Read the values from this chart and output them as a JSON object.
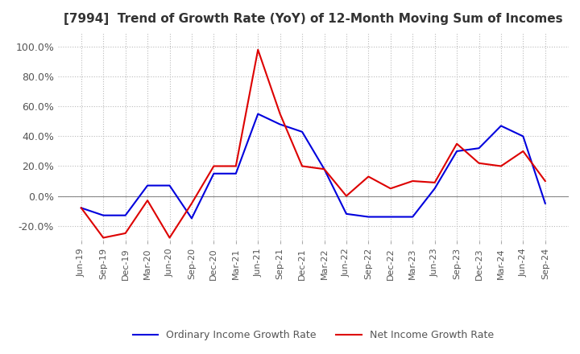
{
  "title": "[7994]  Trend of Growth Rate (YoY) of 12-Month Moving Sum of Incomes",
  "title_fontsize": 11,
  "ylim": [
    -30,
    110
  ],
  "yticks": [
    -20.0,
    0.0,
    20.0,
    40.0,
    60.0,
    80.0,
    100.0
  ],
  "background_color": "#ffffff",
  "grid_color": "#bbbbbb",
  "legend_labels": [
    "Ordinary Income Growth Rate",
    "Net Income Growth Rate"
  ],
  "line_colors": [
    "#0000dd",
    "#dd0000"
  ],
  "dates": [
    "Jun-19",
    "Sep-19",
    "Dec-19",
    "Mar-20",
    "Jun-20",
    "Sep-20",
    "Dec-20",
    "Mar-21",
    "Jun-21",
    "Sep-21",
    "Dec-21",
    "Mar-22",
    "Jun-22",
    "Sep-22",
    "Dec-22",
    "Mar-23",
    "Jun-23",
    "Sep-23",
    "Dec-23",
    "Mar-24",
    "Jun-24",
    "Sep-24"
  ],
  "ordinary_income": [
    -8.0,
    -13.0,
    -13.0,
    7.0,
    7.0,
    -15.0,
    15.0,
    15.0,
    55.0,
    48.0,
    43.0,
    18.0,
    -12.0,
    -14.0,
    -14.0,
    -14.0,
    5.0,
    30.0,
    32.0,
    47.0,
    40.0,
    -5.0
  ],
  "net_income": [
    -8.0,
    -28.0,
    -25.0,
    -3.0,
    -28.0,
    -5.0,
    20.0,
    20.0,
    98.0,
    55.0,
    20.0,
    18.0,
    0.0,
    13.0,
    5.0,
    10.0,
    9.0,
    35.0,
    22.0,
    20.0,
    30.0,
    10.0
  ]
}
